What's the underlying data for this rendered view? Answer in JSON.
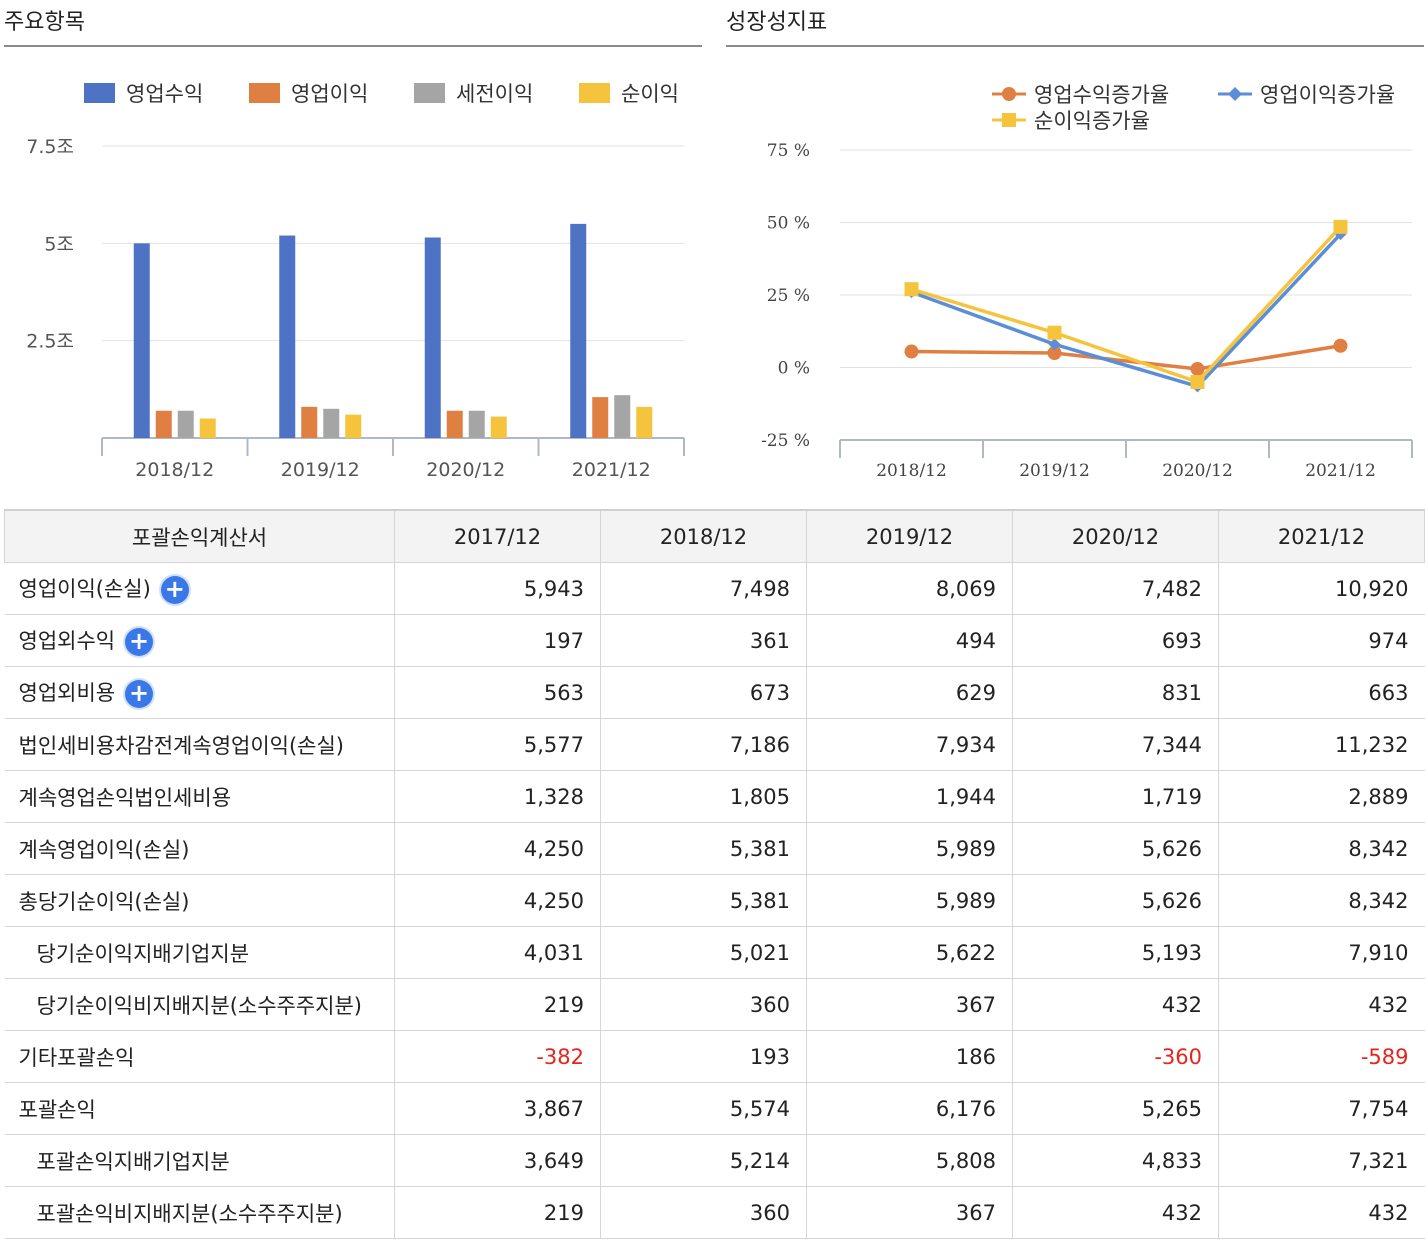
{
  "left_panel": {
    "title": "주요항목"
  },
  "right_panel": {
    "title": "성장성지표"
  },
  "chart_data": [
    {
      "type": "bar",
      "title": "주요항목",
      "categories": [
        "2018/12",
        "2019/12",
        "2020/12",
        "2021/12"
      ],
      "ylim": [
        0,
        7.5
      ],
      "yticks": [
        2.5,
        5,
        7.5
      ],
      "ytick_labels": [
        "2.5조",
        "5조",
        "7.5조"
      ],
      "grid": true,
      "legend_position": "top",
      "series": [
        {
          "name": "영업수익",
          "color": "#4e72c4",
          "values": [
            5.0,
            5.2,
            5.15,
            5.5
          ]
        },
        {
          "name": "영업이익",
          "color": "#e07f42",
          "values": [
            0.7,
            0.8,
            0.7,
            1.05
          ]
        },
        {
          "name": "세전이익",
          "color": "#a5a5a5",
          "values": [
            0.7,
            0.75,
            0.7,
            1.1
          ]
        },
        {
          "name": "순이익",
          "color": "#f5c33c",
          "values": [
            0.5,
            0.6,
            0.55,
            0.8
          ]
        }
      ]
    },
    {
      "type": "line",
      "title": "성장성지표",
      "categories": [
        "2018/12",
        "2019/12",
        "2020/12",
        "2021/12"
      ],
      "ylim": [
        -25,
        75
      ],
      "yticks": [
        -25,
        0,
        25,
        50,
        75
      ],
      "ytick_labels": [
        "-25 %",
        "0 %",
        "25 %",
        "50 %",
        "75 %"
      ],
      "grid": true,
      "legend_position": "top-right",
      "series": [
        {
          "name": "영업수익증가율",
          "color": "#e07f42",
          "marker": "circle",
          "values": [
            5.5,
            5.0,
            -0.5,
            7.5
          ]
        },
        {
          "name": "영업이익증가율",
          "color": "#5b8ed6",
          "marker": "diamond",
          "values": [
            26.0,
            8.0,
            -6.5,
            46.0
          ]
        },
        {
          "name": "순이익증가율",
          "color": "#f5c33c",
          "marker": "square",
          "values": [
            27.0,
            12.0,
            -5.0,
            48.5
          ]
        }
      ]
    }
  ],
  "table": {
    "headers": [
      "포괄손익계산서",
      "2017/12",
      "2018/12",
      "2019/12",
      "2020/12",
      "2021/12"
    ],
    "negative_color": "#e8231c",
    "rows": [
      {
        "label": "영업이익(손실)",
        "expand_icon": "plus-circle-icon",
        "values": [
          "5,943",
          "7,498",
          "8,069",
          "7,482",
          "10,920"
        ]
      },
      {
        "label": "영업외수익",
        "expand_icon": "plus-circle-icon",
        "values": [
          "197",
          "361",
          "494",
          "693",
          "974"
        ]
      },
      {
        "label": "영업외비용",
        "expand_icon": "plus-circle-icon",
        "values": [
          "563",
          "673",
          "629",
          "831",
          "663"
        ]
      },
      {
        "label": "법인세비용차감전계속영업이익(손실)",
        "values": [
          "5,577",
          "7,186",
          "7,934",
          "7,344",
          "11,232"
        ]
      },
      {
        "label": "계속영업손익법인세비용",
        "values": [
          "1,328",
          "1,805",
          "1,944",
          "1,719",
          "2,889"
        ]
      },
      {
        "label": "계속영업이익(손실)",
        "values": [
          "4,250",
          "5,381",
          "5,989",
          "5,626",
          "8,342"
        ]
      },
      {
        "label": "총당기순이익(손실)",
        "values": [
          "4,250",
          "5,381",
          "5,989",
          "5,626",
          "8,342"
        ]
      },
      {
        "label": "당기순이익지배기업지분",
        "indent": true,
        "values": [
          "4,031",
          "5,021",
          "5,622",
          "5,193",
          "7,910"
        ]
      },
      {
        "label": "당기순이익비지배지분(소수주주지분)",
        "indent": true,
        "values": [
          "219",
          "360",
          "367",
          "432",
          "432"
        ]
      },
      {
        "label": "기타포괄손익",
        "values": [
          "-382",
          "193",
          "186",
          "-360",
          "-589"
        ]
      },
      {
        "label": "포괄손익",
        "values": [
          "3,867",
          "5,574",
          "6,176",
          "5,265",
          "7,754"
        ]
      },
      {
        "label": "포괄손익지배기업지분",
        "indent": true,
        "values": [
          "3,649",
          "5,214",
          "5,808",
          "4,833",
          "7,321"
        ]
      },
      {
        "label": "포괄손익비지배지분(소수주주지분)",
        "indent": true,
        "values": [
          "219",
          "360",
          "367",
          "432",
          "432"
        ]
      }
    ]
  }
}
